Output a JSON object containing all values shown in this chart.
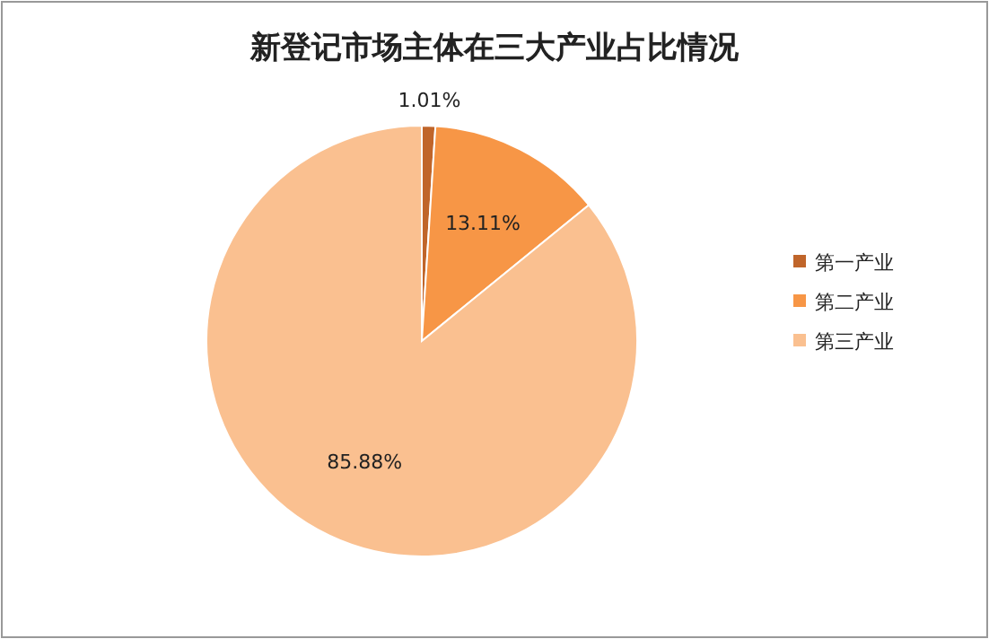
{
  "chart_data": {
    "type": "pie",
    "title": "新登记市场主体在三大产业占比情况",
    "categories": [
      "第一产业",
      "第二产业",
      "第三产业"
    ],
    "values": [
      1.01,
      13.11,
      85.88
    ],
    "colors": [
      "#c0652a",
      "#f79646",
      "#fac090"
    ],
    "value_labels": [
      "1.01%",
      "13.11%",
      "85.88%"
    ],
    "legend": "right"
  }
}
